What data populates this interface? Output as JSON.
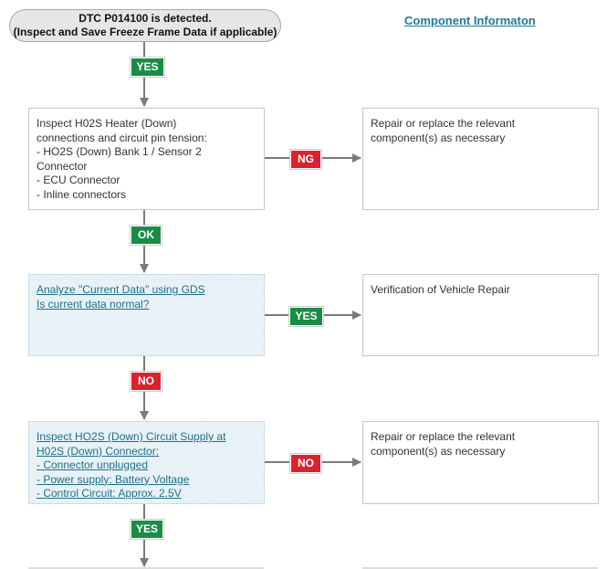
{
  "start": {
    "lines": [
      "DTC P014100 is detected.",
      "(Inspect and Save Freeze Frame Data if applicable)"
    ]
  },
  "component_link": "Component Informaton",
  "badges": [
    "YES",
    "NG",
    "OK",
    "YES",
    "NO",
    "NO",
    "YES"
  ],
  "steps": [
    {
      "lines": [
        "Inspect H02S Heater (Down)",
        "connections and circuit pin tension:",
        "- HO2S (Down) Bank 1 / Sensor 2",
        "Connector",
        "- ECU Connector",
        "- Inline connectors"
      ]
    },
    {
      "lines": [
        "Analyze \"Current Data\" using GDS",
        "Is current data normal?"
      ]
    },
    {
      "lines": [
        "Inspect HO2S (Down) Circuit Supply at",
        "H02S (Down) Connector:",
        "- Connector unplugged",
        "- Power supply: Battery Voltage",
        "- Control Circuit: Approx. 2.5V"
      ]
    }
  ],
  "results": [
    {
      "lines": [
        "Repair or replace the relevant",
        "component(s) as necessary"
      ]
    },
    {
      "lines": [
        "Verification of Vehicle Repair"
      ]
    },
    {
      "lines": [
        "Repair or replace the relevant",
        "component(s) as necessary"
      ]
    }
  ]
}
